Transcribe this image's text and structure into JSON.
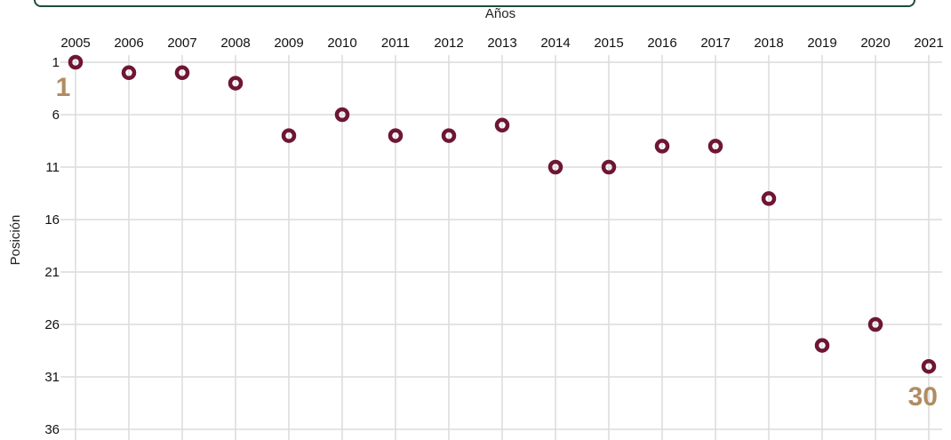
{
  "chart_data": {
    "type": "scatter",
    "xlabel": "Años",
    "ylabel": "Posición",
    "x": [
      2005,
      2006,
      2007,
      2008,
      2009,
      2010,
      2011,
      2012,
      2013,
      2014,
      2015,
      2016,
      2017,
      2018,
      2019,
      2020,
      2021
    ],
    "y": [
      1,
      2,
      2,
      3,
      8,
      6,
      8,
      8,
      7,
      11,
      11,
      9,
      9,
      14,
      28,
      26,
      30
    ],
    "x_ticks": [
      "2005",
      "2006",
      "2007",
      "2008",
      "2009",
      "2010",
      "2011",
      "2012",
      "2013",
      "2014",
      "2015",
      "2016",
      "2017",
      "2018",
      "2019",
      "2020",
      "2021"
    ],
    "y_ticks": [
      1,
      6,
      11,
      16,
      21,
      26,
      31,
      36
    ],
    "ylim": [
      1,
      36
    ],
    "y_inverted": true,
    "x_axis_position": "top",
    "grid": true,
    "annotations": [
      {
        "text": "1",
        "x": 2005,
        "y": 1
      },
      {
        "text": "30",
        "x": 2021,
        "y": 30
      }
    ],
    "colors": {
      "marker": "#6e1633",
      "annotation": "#b08d62",
      "grid": "#dcdcdc"
    }
  }
}
